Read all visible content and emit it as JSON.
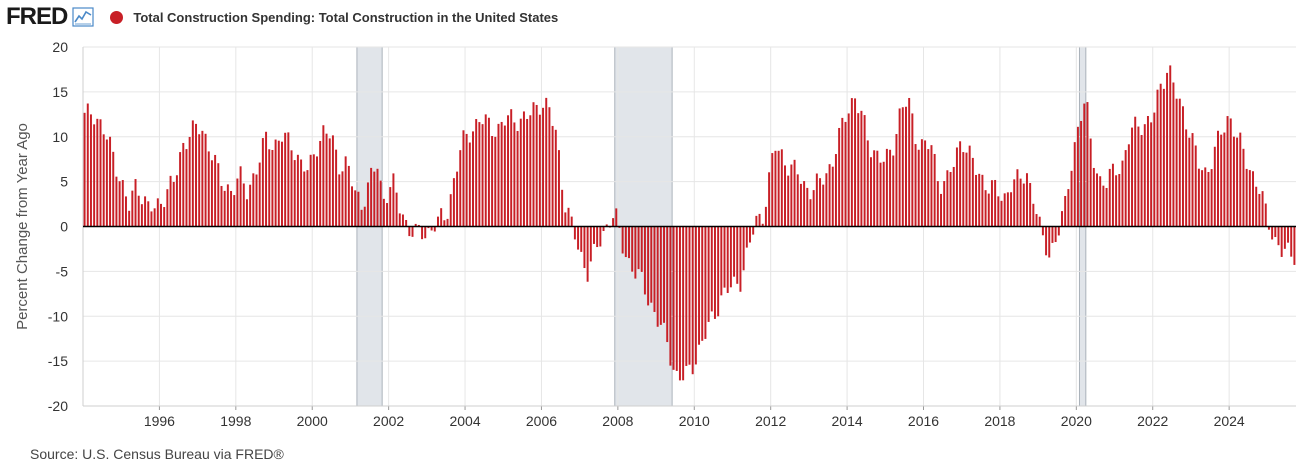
{
  "brand": {
    "logo_text": "FRED",
    "logo_icon": "chart-line-icon"
  },
  "header": {
    "series_title": "Total Construction Spending: Total Construction in the United States"
  },
  "footer": {
    "source": "Source: U.S. Census Bureau via FRED®"
  },
  "colors": {
    "series": "#c81f26",
    "recession": "#e1e5ea",
    "recession_edge": "#9aa3ad",
    "axis": "#000000"
  },
  "chart_data": {
    "type": "bar",
    "title": "Total Construction Spending: Total Construction in the United States",
    "ylabel": "Percent Change from Year Ago",
    "xlabel": "",
    "ylim": [
      -20,
      20
    ],
    "xlim": [
      1994.0,
      2025.75
    ],
    "y_ticks": [
      20,
      15,
      10,
      5,
      0,
      -5,
      -10,
      -15,
      -20
    ],
    "x_tick_labels": [
      "1996",
      "1998",
      "2000",
      "2002",
      "2004",
      "2006",
      "2008",
      "2010",
      "2012",
      "2014",
      "2016",
      "2018",
      "2020",
      "2022",
      "2024"
    ],
    "recessions": [
      [
        2001.17,
        2001.83
      ],
      [
        2007.92,
        2009.42
      ],
      [
        2020.08,
        2020.25
      ]
    ],
    "grid": true,
    "frequency": "monthly",
    "start": "1994-01",
    "anchors": [
      [
        1994.0,
        12
      ],
      [
        1994.25,
        13
      ],
      [
        1994.5,
        11
      ],
      [
        1994.8,
        8
      ],
      [
        1995.0,
        5
      ],
      [
        1995.2,
        2
      ],
      [
        1995.4,
        5
      ],
      [
        1995.7,
        2
      ],
      [
        1995.9,
        2
      ],
      [
        1996.2,
        4
      ],
      [
        1996.4,
        5
      ],
      [
        1996.6,
        9
      ],
      [
        1996.8,
        10.5
      ],
      [
        1997.1,
        11
      ],
      [
        1997.4,
        8
      ],
      [
        1997.6,
        5
      ],
      [
        1997.9,
        4
      ],
      [
        1998.1,
        5.5
      ],
      [
        1998.3,
        4
      ],
      [
        1998.6,
        7
      ],
      [
        1998.8,
        10
      ],
      [
        1999.0,
        9
      ],
      [
        1999.2,
        10
      ],
      [
        1999.5,
        9
      ],
      [
        1999.7,
        7
      ],
      [
        1999.9,
        6
      ],
      [
        2000.1,
        9
      ],
      [
        2000.3,
        10.5
      ],
      [
        2000.5,
        10
      ],
      [
        2000.7,
        7
      ],
      [
        2000.9,
        7
      ],
      [
        2001.1,
        4
      ],
      [
        2001.3,
        2.5
      ],
      [
        2001.5,
        5
      ],
      [
        2001.7,
        7
      ],
      [
        2001.85,
        3
      ],
      [
        2002.1,
        5
      ],
      [
        2002.3,
        2
      ],
      [
        2002.5,
        0
      ],
      [
        2002.7,
        -0.8
      ],
      [
        2003.0,
        -0.8
      ],
      [
        2003.2,
        0.3
      ],
      [
        2003.5,
        1
      ],
      [
        2003.7,
        5
      ],
      [
        2003.9,
        9
      ],
      [
        2004.2,
        11
      ],
      [
        2004.4,
        12
      ],
      [
        2004.7,
        11
      ],
      [
        2004.9,
        11
      ],
      [
        2005.1,
        12
      ],
      [
        2005.3,
        12
      ],
      [
        2005.6,
        12
      ],
      [
        2005.8,
        13
      ],
      [
        2006.0,
        14
      ],
      [
        2006.2,
        13
      ],
      [
        2006.4,
        10
      ],
      [
        2006.6,
        3
      ],
      [
        2006.8,
        0
      ],
      [
        2007.0,
        -3
      ],
      [
        2007.2,
        -5
      ],
      [
        2007.4,
        -3
      ],
      [
        2007.6,
        -1
      ],
      [
        2007.8,
        1
      ],
      [
        2007.92,
        1.5
      ],
      [
        2008.1,
        -2
      ],
      [
        2008.3,
        -4
      ],
      [
        2008.6,
        -6
      ],
      [
        2008.9,
        -9
      ],
      [
        2009.1,
        -11
      ],
      [
        2009.3,
        -13
      ],
      [
        2009.5,
        -16.5
      ],
      [
        2009.75,
        -17
      ],
      [
        2010.0,
        -15
      ],
      [
        2010.2,
        -13
      ],
      [
        2010.5,
        -10
      ],
      [
        2010.7,
        -8
      ],
      [
        2010.9,
        -7
      ],
      [
        2011.2,
        -6
      ],
      [
        2011.4,
        -3
      ],
      [
        2011.6,
        0.5
      ],
      [
        2011.8,
        1.5
      ],
      [
        2011.9,
        3.5
      ],
      [
        2012.1,
        9
      ],
      [
        2012.3,
        8
      ],
      [
        2012.5,
        6.5
      ],
      [
        2012.7,
        6
      ],
      [
        2012.9,
        4.5
      ],
      [
        2013.1,
        4
      ],
      [
        2013.3,
        5
      ],
      [
        2013.6,
        7
      ],
      [
        2013.8,
        10
      ],
      [
        2014.0,
        13
      ],
      [
        2014.2,
        14.5
      ],
      [
        2014.4,
        12
      ],
      [
        2014.6,
        9
      ],
      [
        2014.8,
        8
      ],
      [
        2015.0,
        7
      ],
      [
        2015.2,
        9
      ],
      [
        2015.4,
        13
      ],
      [
        2015.6,
        14
      ],
      [
        2015.8,
        10
      ],
      [
        2016.0,
        9
      ],
      [
        2016.2,
        9
      ],
      [
        2016.4,
        5
      ],
      [
        2016.6,
        5
      ],
      [
        2016.8,
        7
      ],
      [
        2017.0,
        10
      ],
      [
        2017.2,
        8
      ],
      [
        2017.4,
        6
      ],
      [
        2017.6,
        5
      ],
      [
        2017.9,
        4
      ],
      [
        2018.1,
        3
      ],
      [
        2018.3,
        5
      ],
      [
        2018.5,
        5
      ],
      [
        2018.7,
        6
      ],
      [
        2018.9,
        3
      ],
      [
        2019.1,
        -1.5
      ],
      [
        2019.3,
        -3
      ],
      [
        2019.5,
        -1
      ],
      [
        2019.7,
        2
      ],
      [
        2019.9,
        8
      ],
      [
        2020.1,
        12
      ],
      [
        2020.25,
        14
      ],
      [
        2020.4,
        9
      ],
      [
        2020.6,
        5
      ],
      [
        2020.8,
        4.5
      ],
      [
        2021.0,
        7
      ],
      [
        2021.2,
        6.5
      ],
      [
        2021.4,
        10
      ],
      [
        2021.6,
        12
      ],
      [
        2021.8,
        11
      ],
      [
        2022.0,
        12
      ],
      [
        2022.2,
        16
      ],
      [
        2022.4,
        17.5
      ],
      [
        2022.6,
        15
      ],
      [
        2022.8,
        13
      ],
      [
        2023.0,
        10
      ],
      [
        2023.2,
        7
      ],
      [
        2023.4,
        6
      ],
      [
        2023.6,
        8
      ],
      [
        2023.8,
        10.5
      ],
      [
        2024.0,
        12.5
      ],
      [
        2024.2,
        10
      ],
      [
        2024.4,
        8
      ],
      [
        2024.6,
        6
      ],
      [
        2024.8,
        4
      ],
      [
        2025.0,
        1
      ],
      [
        2025.2,
        -1.5
      ],
      [
        2025.4,
        -3
      ],
      [
        2025.6,
        -3
      ]
    ]
  }
}
